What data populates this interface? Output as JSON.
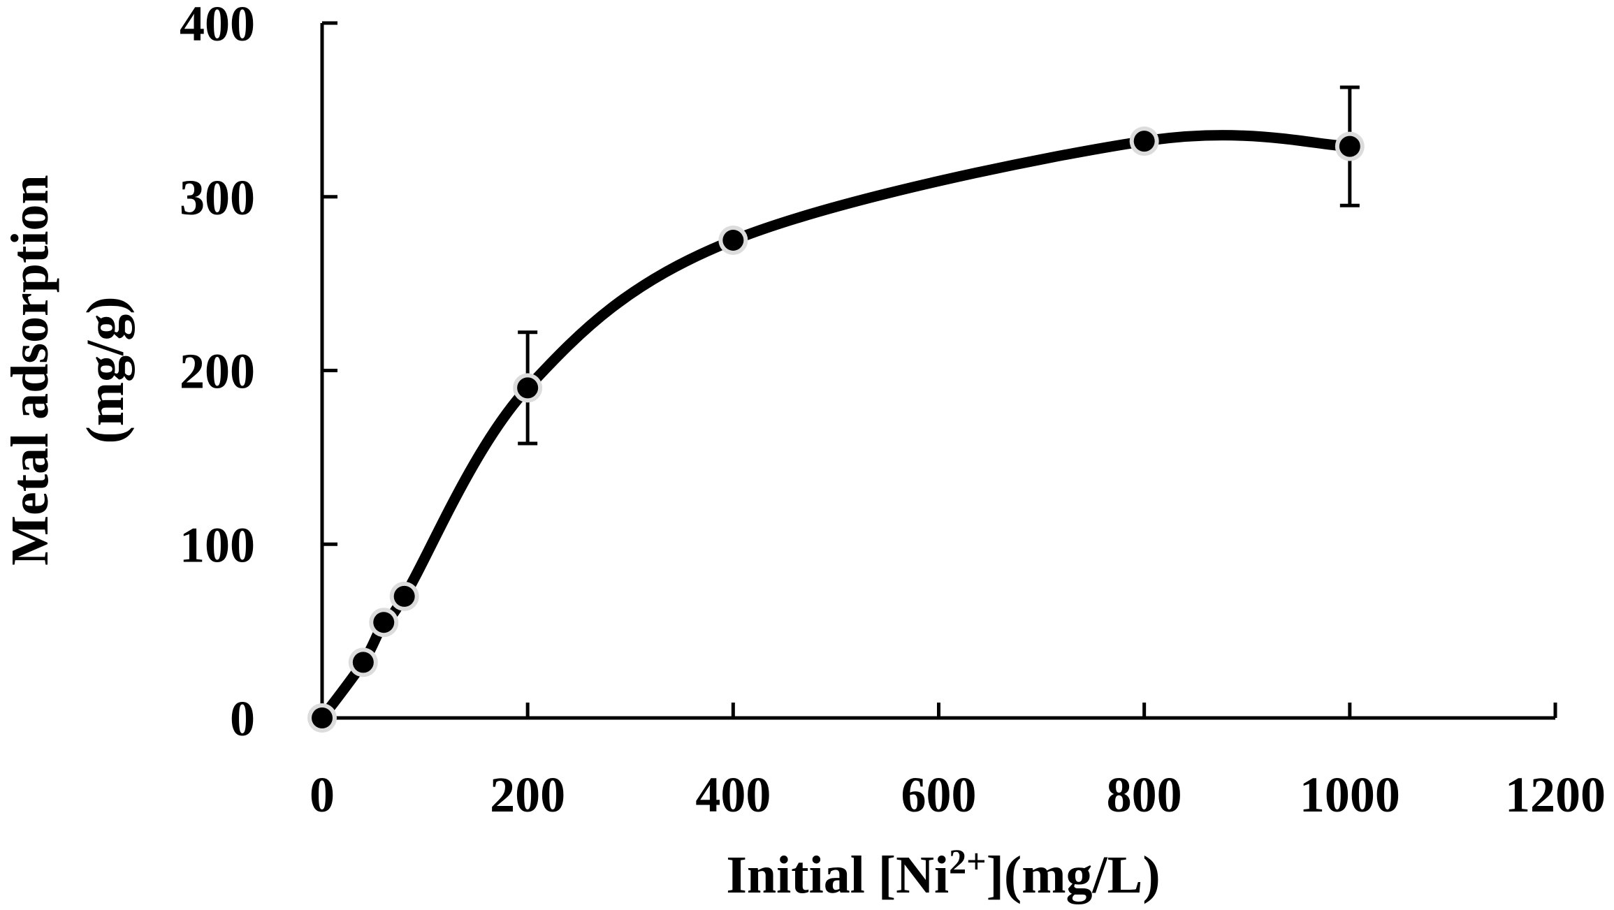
{
  "chart_data": {
    "type": "scatter",
    "title": "",
    "xlabel": "Initial [Ni2+] (mg/L)",
    "xlabel_parts": {
      "pre": "Initial [Ni",
      "sup": "2+",
      "post": "](mg/L)"
    },
    "ylabel_line1": "Metal adsorption",
    "ylabel_line2": "(mg/g)",
    "xlim": [
      0,
      1200
    ],
    "ylim": [
      0,
      400
    ],
    "xticks": [
      "0",
      "200",
      "400",
      "600",
      "800",
      "1000",
      "1200"
    ],
    "yticks": [
      "0",
      "100",
      "200",
      "300",
      "400"
    ],
    "grid": false,
    "series": [
      {
        "x": [
          0,
          40,
          60,
          80,
          200,
          400,
          800,
          1000
        ],
        "y": [
          0,
          32,
          55,
          70,
          190,
          275,
          332,
          329
        ],
        "err": [
          0,
          0,
          0,
          0,
          32,
          0,
          0,
          34
        ]
      }
    ],
    "smooth_line": true
  }
}
